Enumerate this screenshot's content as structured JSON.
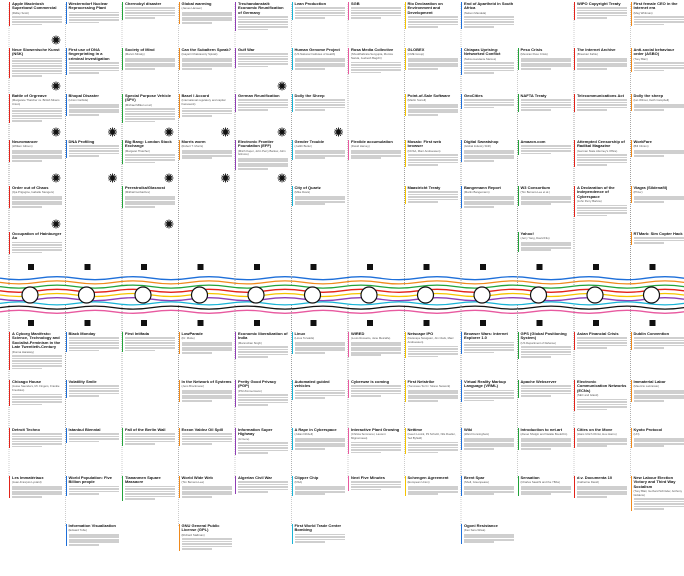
{
  "colors": {
    "line_blue": "#1e6fd9",
    "line_orange": "#f08a1c",
    "line_green": "#22a33a",
    "line_red": "#e2231a",
    "line_yellow": "#f5c400",
    "line_purple": "#8e3fb4",
    "line_cyan": "#19b4d6",
    "line_black": "#111111",
    "line_pink": "#e85aa0",
    "stripe_default": "#e2231a"
  },
  "top_cards": [
    {
      "title": "Apple Macintosh Superbowl Commercial",
      "sub": "(Ridley Scott)",
      "col": 0,
      "row": 0,
      "lines": 4,
      "stripe": "#e2231a",
      "icon": "star-icon"
    },
    {
      "title": "Neue Slowenische Kunst (NSK)",
      "sub": "",
      "col": 0,
      "row": 1,
      "lines": 8,
      "stripe": "#e2231a",
      "icon": "star-icon"
    },
    {
      "title": "Battle of Orgreave",
      "sub": "(Margarete Thatcher vs. British Miners Union)",
      "col": 0,
      "row": 2,
      "lines": 6,
      "stripe": "#e2231a",
      "icon": "star-icon"
    },
    {
      "title": "Neuromancer",
      "sub": "(William Gibson)",
      "col": 0,
      "row": 3,
      "lines": 5,
      "stripe": "#e2231a",
      "icon": "star-icon"
    },
    {
      "title": "Order out of Chaos",
      "sub": "(Ilya Prigogine, Isabelle Stengers)",
      "col": 0,
      "row": 4,
      "lines": 5,
      "stripe": "#e2231a",
      "icon": "star-icon"
    },
    {
      "title": "Occupation of Hainburger Au",
      "sub": "",
      "col": 0,
      "row": 5,
      "lines": 5,
      "stripe": "#e2231a",
      "icon": ""
    },
    {
      "title": "Westerndorf Nuclear Reprocessing Plant",
      "sub": "",
      "col": 1,
      "row": 0,
      "lines": 5,
      "stripe": "#1e6fd9",
      "icon": ""
    },
    {
      "title": "First use of DNA fingerprinting in a criminal investigation",
      "sub": "",
      "col": 1,
      "row": 1,
      "lines": 5,
      "stripe": "#1e6fd9",
      "icon": ""
    },
    {
      "title": "Bhopal Disaster",
      "sub": "(Union Carbide)",
      "col": 1,
      "row": 2,
      "lines": 5,
      "stripe": "#1e6fd9",
      "icon": "star-icon"
    },
    {
      "title": "DNA Profiling",
      "sub": "",
      "col": 1,
      "row": 3,
      "lines": 5,
      "stripe": "#1e6fd9",
      "icon": "star-icon"
    },
    {
      "title": "Chernobyl disaster",
      "sub": "",
      "col": 2,
      "row": 0,
      "lines": 5,
      "stripe": "#22a33a",
      "icon": ""
    },
    {
      "title": "Society of Mind",
      "sub": "(Marvin Minsky)",
      "col": 2,
      "row": 1,
      "lines": 5,
      "stripe": "#22a33a",
      "icon": ""
    },
    {
      "title": "Special Purpose Vehicle (SPV)",
      "sub": "(Michael Milken et al.)",
      "col": 2,
      "row": 2,
      "lines": 6,
      "stripe": "#22a33a",
      "icon": "star-icon"
    },
    {
      "title": "Big Bang: London Stock Exchange",
      "sub": "(Margaret Thatcher)",
      "col": 2,
      "row": 3,
      "lines": 4,
      "stripe": "#22a33a",
      "icon": "star-icon"
    },
    {
      "title": "Perestroika/Glasnost",
      "sub": "(Mikhail Gorbachev)",
      "col": 2,
      "row": 4,
      "lines": 5,
      "stripe": "#22a33a",
      "icon": "star-icon"
    },
    {
      "title": "Global warming",
      "sub": "(James Hansen)",
      "col": 3,
      "row": 0,
      "lines": 5,
      "stripe": "#f08a1c",
      "icon": ""
    },
    {
      "title": "Can the Subaltern Speak?",
      "sub": "(Gayatri Chakravorty Spivak)",
      "col": 3,
      "row": 1,
      "lines": 5,
      "stripe": "#f08a1c",
      "icon": ""
    },
    {
      "title": "Basel I Accord",
      "sub": "(International regulatory and capital framework)",
      "col": 3,
      "row": 2,
      "lines": 4,
      "stripe": "#f08a1c",
      "icon": "star-icon"
    },
    {
      "title": "Morris worm",
      "sub": "(Robert T. Morris)",
      "col": 3,
      "row": 3,
      "lines": 4,
      "stripe": "#f08a1c",
      "icon": "star-icon"
    },
    {
      "title": "Treuhandanstalt: Economic Reunification of Germany",
      "sub": "",
      "col": 4,
      "row": 0,
      "lines": 6,
      "stripe": "#8e3fb4",
      "icon": ""
    },
    {
      "title": "Gulf War",
      "sub": "",
      "col": 4,
      "row": 1,
      "lines": 6,
      "stripe": "#8e3fb4",
      "icon": "star-icon"
    },
    {
      "title": "German Reunification",
      "sub": "",
      "col": 4,
      "row": 2,
      "lines": 5,
      "stripe": "#8e3fb4",
      "icon": "star-icon"
    },
    {
      "title": "Electronic Frontier Foundation (EFF)",
      "sub": "(Mitch Kapor, John Perry Barlow, John Gilmore)",
      "col": 4,
      "row": 3,
      "lines": 5,
      "stripe": "#8e3fb4",
      "icon": "star-icon"
    },
    {
      "title": "Lean Production",
      "sub": "",
      "col": 5,
      "row": 0,
      "lines": 5,
      "stripe": "#19b4d6",
      "icon": ""
    },
    {
      "title": "Human Genome Project",
      "sub": "(US National Institutes of Health)",
      "col": 5,
      "row": 1,
      "lines": 5,
      "stripe": "#19b4d6",
      "icon": ""
    },
    {
      "title": "Dolly the Sheep",
      "sub": "",
      "col": 5,
      "row": 2,
      "lines": 5,
      "stripe": "#19b4d6",
      "icon": "star-icon"
    },
    {
      "title": "Gender Trouble",
      "sub": "(Judith Butler)",
      "col": 5,
      "row": 3,
      "lines": 4,
      "stripe": "#19b4d6",
      "icon": ""
    },
    {
      "title": "City of Quartz",
      "sub": "(Mike Davis)",
      "col": 5,
      "row": 4,
      "lines": 4,
      "stripe": "#19b4d6",
      "icon": ""
    },
    {
      "title": "SGB",
      "sub": "",
      "col": 6,
      "row": 0,
      "lines": 5,
      "stripe": "#e85aa0",
      "icon": ""
    },
    {
      "title": "Rosa Media Collective",
      "sub": "(Shuddhabrata Sengupta, Monica Narula, Jeebesh Bagchi)",
      "col": 6,
      "row": 1,
      "lines": 5,
      "stripe": "#e85aa0",
      "icon": ""
    },
    {
      "title": "Flexible accumulation",
      "sub": "(David Harvey)",
      "col": 6,
      "row": 3,
      "lines": 4,
      "stripe": "#e85aa0",
      "icon": ""
    },
    {
      "title": "Rio Declaration on Environment and Development",
      "sub": "",
      "col": 7,
      "row": 0,
      "lines": 5,
      "stripe": "#f5c400",
      "icon": ""
    },
    {
      "title": "GLOBEX",
      "sub": "(CME Group)",
      "col": 7,
      "row": 1,
      "lines": 5,
      "stripe": "#f5c400",
      "icon": ""
    },
    {
      "title": "Point-of-Sale Software",
      "sub": "(Martin Sorrell)",
      "col": 7,
      "row": 2,
      "lines": 5,
      "stripe": "#f5c400",
      "icon": ""
    },
    {
      "title": "Mosaic: First web browser",
      "sub": "(NCSA, Marc Andreessen)",
      "col": 7,
      "row": 3,
      "lines": 5,
      "stripe": "#f5c400",
      "icon": ""
    },
    {
      "title": "Maastricht Treaty",
      "sub": "",
      "col": 7,
      "row": 4,
      "lines": 5,
      "stripe": "#f5c400",
      "icon": ""
    },
    {
      "title": "End of Apartheid in South Africa",
      "sub": "(Nelson Mandela)",
      "col": 8,
      "row": 0,
      "lines": 5,
      "stripe": "#1e6fd9",
      "icon": ""
    },
    {
      "title": "Chiapas Uprising: Networked Conflict",
      "sub": "(Subcomandante Marcos)",
      "col": 8,
      "row": 1,
      "lines": 5,
      "stripe": "#1e6fd9",
      "icon": ""
    },
    {
      "title": "GeoCities",
      "sub": "",
      "col": 8,
      "row": 2,
      "lines": 4,
      "stripe": "#1e6fd9",
      "icon": ""
    },
    {
      "title": "Digital Sweatshop",
      "sub": "(Global Industry Shift)",
      "col": 8,
      "row": 3,
      "lines": 5,
      "stripe": "#1e6fd9",
      "icon": ""
    },
    {
      "title": "Bangemann Report",
      "sub": "(Martin Bangemann)",
      "col": 8,
      "row": 4,
      "lines": 5,
      "stripe": "#1e6fd9",
      "icon": ""
    },
    {
      "title": "Peso Crisis",
      "sub": "(Mexican Peso Crisis)",
      "col": 9,
      "row": 1,
      "lines": 5,
      "stripe": "#22a33a",
      "icon": ""
    },
    {
      "title": "NAFTA Treaty",
      "sub": "",
      "col": 9,
      "row": 2,
      "lines": 5,
      "stripe": "#22a33a",
      "icon": ""
    },
    {
      "title": "Amazon.com",
      "sub": "",
      "col": 9,
      "row": 3,
      "lines": 4,
      "stripe": "#22a33a",
      "icon": ""
    },
    {
      "title": "W3 Consortium",
      "sub": "(Tim Berners-Lee et al.)",
      "col": 9,
      "row": 4,
      "lines": 4,
      "stripe": "#22a33a",
      "icon": ""
    },
    {
      "title": "Yahoo!",
      "sub": "(Jerry Yang, David Filo)",
      "col": 9,
      "row": 5,
      "lines": 4,
      "stripe": "#22a33a",
      "icon": ""
    },
    {
      "title": "WIPO Copyright Treaty",
      "sub": "",
      "col": 10,
      "row": 0,
      "lines": 5,
      "stripe": "#e2231a",
      "icon": ""
    },
    {
      "title": "The Internet Archive",
      "sub": "(Brewster Kahle)",
      "col": 10,
      "row": 1,
      "lines": 5,
      "stripe": "#e2231a",
      "icon": ""
    },
    {
      "title": "Telecommunications Act",
      "sub": "",
      "col": 10,
      "row": 2,
      "lines": 5,
      "stripe": "#e2231a",
      "icon": ""
    },
    {
      "title": "Attempted Censorship of Radikal Magazine",
      "sub": "(German State Attorney's Office)",
      "col": 10,
      "row": 3,
      "lines": 5,
      "stripe": "#e2231a",
      "icon": ""
    },
    {
      "title": "A Declaration of the Independence of Cyberspace",
      "sub": "(John Perry Barlow)",
      "col": 10,
      "row": 4,
      "lines": 5,
      "stripe": "#e2231a",
      "icon": ""
    },
    {
      "title": "First female CEO in the Internet era",
      "sub": "(Meg Whitman)",
      "col": 11,
      "row": 0,
      "lines": 4,
      "stripe": "#f08a1c",
      "icon": ""
    },
    {
      "title": "Anti-social behaviour order (ASBO)",
      "sub": "(Tony Blair)",
      "col": 11,
      "row": 1,
      "lines": 4,
      "stripe": "#f08a1c",
      "icon": ""
    },
    {
      "title": "Dolly the sheep",
      "sub": "(Ian Wilmut, Keith Campbell)",
      "col": 11,
      "row": 2,
      "lines": 3,
      "stripe": "#f08a1c",
      "icon": ""
    },
    {
      "title": "WorkFare",
      "sub": "(Bill Clinton)",
      "col": 11,
      "row": 3,
      "lines": 3,
      "stripe": "#f08a1c",
      "icon": ""
    },
    {
      "title": "Viagra (Sildenafil)",
      "sub": "(Pfizer)",
      "col": 11,
      "row": 4,
      "lines": 3,
      "stripe": "#f08a1c",
      "icon": ""
    },
    {
      "title": "RTMark: Sim Copter Hack",
      "sub": "",
      "col": 11,
      "row": 5,
      "lines": 3,
      "stripe": "#f08a1c",
      "icon": ""
    }
  ],
  "bottom_cards": [
    {
      "title": "A Cyborg Manifesto: Science, Technology and Socialist-Feminism in the Late Twentieth-Century",
      "sub": "(Donna Haraway)",
      "col": 0,
      "row": 0,
      "lines": 6,
      "stripe": "#e2231a",
      "icon": ""
    },
    {
      "title": "Chicago House",
      "sub": "(Jesse Saunders, Mr. Fingers, Frankie Knuckles)",
      "col": 0,
      "row": 1,
      "lines": 5,
      "stripe": "#e2231a",
      "icon": ""
    },
    {
      "title": "Detroit Techno",
      "sub": "",
      "col": 0,
      "row": 2,
      "lines": 6,
      "stripe": "#e2231a",
      "icon": ""
    },
    {
      "title": "Les Immatériaux",
      "sub": "(Jean-François Lyotard)",
      "col": 0,
      "row": 3,
      "lines": 5,
      "stripe": "#e2231a",
      "icon": ""
    },
    {
      "title": "Black Monday",
      "sub": "",
      "col": 1,
      "row": 0,
      "lines": 6,
      "stripe": "#1e6fd9",
      "icon": ""
    },
    {
      "title": "Volatility Smile",
      "sub": "",
      "col": 1,
      "row": 1,
      "lines": 5,
      "stripe": "#1e6fd9",
      "icon": ""
    },
    {
      "title": "Istanbul Biennial",
      "sub": "",
      "col": 1,
      "row": 2,
      "lines": 4,
      "stripe": "#1e6fd9",
      "icon": ""
    },
    {
      "title": "World Population: Five Billion people",
      "sub": "",
      "col": 1,
      "row": 3,
      "lines": 4,
      "stripe": "#1e6fd9",
      "icon": ""
    },
    {
      "title": "Information Visualization",
      "sub": "(Edward Tufte)",
      "col": 1,
      "row": 4,
      "lines": 5,
      "stripe": "#1e6fd9",
      "icon": ""
    },
    {
      "title": "First Intifada",
      "sub": "",
      "col": 2,
      "row": 0,
      "lines": 6,
      "stripe": "#22a33a",
      "icon": ""
    },
    {
      "title": "Fall of the Berlin Wall",
      "sub": "",
      "col": 2,
      "row": 2,
      "lines": 5,
      "stripe": "#22a33a",
      "icon": ""
    },
    {
      "title": "Tiananmen Square Massacre",
      "sub": "",
      "col": 2,
      "row": 3,
      "lines": 6,
      "stripe": "#22a33a",
      "icon": ""
    },
    {
      "title": "LowParade",
      "sub": "(Dr. Motte)",
      "col": 3,
      "row": 0,
      "lines": 5,
      "stripe": "#f08a1c",
      "icon": ""
    },
    {
      "title": "In the Network of Systems",
      "sub": "(Jens Brockmeier)",
      "col": 3,
      "row": 1,
      "lines": 5,
      "stripe": "#f08a1c",
      "icon": ""
    },
    {
      "title": "Exxon Valdez Oil Spill",
      "sub": "",
      "col": 3,
      "row": 2,
      "lines": 5,
      "stripe": "#f08a1c",
      "icon": ""
    },
    {
      "title": "World Wide Web",
      "sub": "(Tim Berners-Lee)",
      "col": 3,
      "row": 3,
      "lines": 5,
      "stripe": "#f08a1c",
      "icon": ""
    },
    {
      "title": "GNU General Public License (GPL)",
      "sub": "(Richard Stallman)",
      "col": 3,
      "row": 4,
      "lines": 5,
      "stripe": "#f08a1c",
      "icon": ""
    },
    {
      "title": "Economic liberalization of India",
      "sub": "(Manmohan Singh)",
      "col": 4,
      "row": 0,
      "lines": 5,
      "stripe": "#8e3fb4",
      "icon": ""
    },
    {
      "title": "Pretty Good Privacy (PGP)",
      "sub": "(Phil Zimmermann)",
      "col": 4,
      "row": 1,
      "lines": 5,
      "stripe": "#8e3fb4",
      "icon": ""
    },
    {
      "title": "Information Super Highway",
      "sub": "(Al Gore)",
      "col": 4,
      "row": 2,
      "lines": 5,
      "stripe": "#8e3fb4",
      "icon": ""
    },
    {
      "title": "Algerian Civil War",
      "sub": "",
      "col": 4,
      "row": 3,
      "lines": 5,
      "stripe": "#8e3fb4",
      "icon": ""
    },
    {
      "title": "Linux",
      "sub": "(Linus Torvalds)",
      "col": 5,
      "row": 0,
      "lines": 5,
      "stripe": "#19b4d6",
      "icon": ""
    },
    {
      "title": "Automated guided vehicles",
      "sub": "",
      "col": 5,
      "row": 1,
      "lines": 4,
      "stripe": "#19b4d6",
      "icon": ""
    },
    {
      "title": "A Rape in Cyberspace",
      "sub": "(Julian Dibbell)",
      "col": 5,
      "row": 2,
      "lines": 5,
      "stripe": "#19b4d6",
      "icon": ""
    },
    {
      "title": "Clipper Chip",
      "sub": "(NSA)",
      "col": 5,
      "row": 3,
      "lines": 4,
      "stripe": "#19b4d6",
      "icon": ""
    },
    {
      "title": "First World Trade Center Bombing",
      "sub": "",
      "col": 5,
      "row": 4,
      "lines": 4,
      "stripe": "#19b4d6",
      "icon": ""
    },
    {
      "title": "WIRED",
      "sub": "(Louis Rossetto, Jane Metcalfe)",
      "col": 6,
      "row": 0,
      "lines": 6,
      "stripe": "#e85aa0",
      "icon": ""
    },
    {
      "title": "Cyberwar is coming",
      "sub": "",
      "col": 6,
      "row": 1,
      "lines": 5,
      "stripe": "#e85aa0",
      "icon": ""
    },
    {
      "title": "Interactive Plant Growing",
      "sub": "(Christa Sommerer, Laurent Mignonneau)",
      "col": 6,
      "row": 2,
      "lines": 5,
      "stripe": "#e85aa0",
      "icon": ""
    },
    {
      "title": "Next Five Minutes",
      "sub": "",
      "col": 6,
      "row": 3,
      "lines": 4,
      "stripe": "#e85aa0",
      "icon": ""
    },
    {
      "title": "Netscape IPO",
      "sub": "(Netscape Navigator, Jim Clark, Marc Andreessen)",
      "col": 7,
      "row": 0,
      "lines": 5,
      "stripe": "#f5c400",
      "icon": ""
    },
    {
      "title": "First Netstrike",
      "sub": "(Tommaso Tozzi / Strano Network)",
      "col": 7,
      "row": 1,
      "lines": 5,
      "stripe": "#f5c400",
      "icon": ""
    },
    {
      "title": "Nettime",
      "sub": "(Geert Lovink, Pit Schultz, Nils Roeller, Ted Byfield)",
      "col": 7,
      "row": 2,
      "lines": 5,
      "stripe": "#f5c400",
      "icon": ""
    },
    {
      "title": "Schengen Agreement",
      "sub": "(European Union)",
      "col": 7,
      "row": 3,
      "lines": 4,
      "stripe": "#f5c400",
      "icon": ""
    },
    {
      "title": "Browser Wars: Internet Explorer 1.0",
      "sub": "",
      "col": 8,
      "row": 0,
      "lines": 5,
      "stripe": "#1e6fd9",
      "icon": ""
    },
    {
      "title": "Virtual Reality Markup Language (VRML)",
      "sub": "",
      "col": 8,
      "row": 1,
      "lines": 5,
      "stripe": "#1e6fd9",
      "icon": ""
    },
    {
      "title": "Wiki",
      "sub": "(Ward Cunningham)",
      "col": 8,
      "row": 2,
      "lines": 5,
      "stripe": "#1e6fd9",
      "icon": ""
    },
    {
      "title": "Brent Spar",
      "sub": "(Shell, Greenpeace)",
      "col": 8,
      "row": 3,
      "lines": 4,
      "stripe": "#1e6fd9",
      "icon": ""
    },
    {
      "title": "Ogoni Resistance",
      "sub": "(Ken Saro-Wiwa)",
      "col": 8,
      "row": 4,
      "lines": 4,
      "stripe": "#1e6fd9",
      "icon": ""
    },
    {
      "title": "GPS (Global Positioning System)",
      "sub": "(US Department of Defense)",
      "col": 9,
      "row": 0,
      "lines": 5,
      "stripe": "#22a33a",
      "icon": ""
    },
    {
      "title": "Apache Webserver",
      "sub": "",
      "col": 9,
      "row": 1,
      "lines": 5,
      "stripe": "#22a33a",
      "icon": ""
    },
    {
      "title": "Introduction to net.art",
      "sub": "(Alexei Shulgin and Natalie Bookchin)",
      "col": 9,
      "row": 2,
      "lines": 5,
      "stripe": "#22a33a",
      "icon": ""
    },
    {
      "title": "Sensation",
      "sub": "(Charles Saatchi and the YBAs)",
      "col": 9,
      "row": 3,
      "lines": 4,
      "stripe": "#22a33a",
      "icon": ""
    },
    {
      "title": "Asian Financial Crisis",
      "sub": "",
      "col": 10,
      "row": 0,
      "lines": 5,
      "stripe": "#e2231a",
      "icon": ""
    },
    {
      "title": "Electronic Communication Networks (ECNs)",
      "sub": "(SEC and Island)",
      "col": 10,
      "row": 1,
      "lines": 5,
      "stripe": "#e2231a",
      "icon": ""
    },
    {
      "title": "Cities on the Move",
      "sub": "(Hans Ulrich Obrist, Hou Hanru)",
      "col": 10,
      "row": 2,
      "lines": 4,
      "stripe": "#e2231a",
      "icon": ""
    },
    {
      "title": "d.v. Documenta 10",
      "sub": "(Catherine David)",
      "col": 10,
      "row": 3,
      "lines": 5,
      "stripe": "#e2231a",
      "icon": ""
    },
    {
      "title": "Dublin Convention",
      "sub": "",
      "col": 11,
      "row": 0,
      "lines": 5,
      "stripe": "#f08a1c",
      "icon": ""
    },
    {
      "title": "Immaterial Labor",
      "sub": "(Maurizio Lazzarato)",
      "col": 11,
      "row": 1,
      "lines": 5,
      "stripe": "#f08a1c",
      "icon": ""
    },
    {
      "title": "Kyoto Protocol",
      "sub": "(UN)",
      "col": 11,
      "row": 2,
      "lines": 4,
      "stripe": "#f08a1c",
      "icon": ""
    },
    {
      "title": "New Labour Election Victory and Third Way Socialism",
      "sub": "(Tony Blair, Gerhard Schröder, Anthony Giddens)",
      "col": 11,
      "row": 3,
      "lines": 5,
      "stripe": "#f08a1c",
      "icon": ""
    }
  ]
}
